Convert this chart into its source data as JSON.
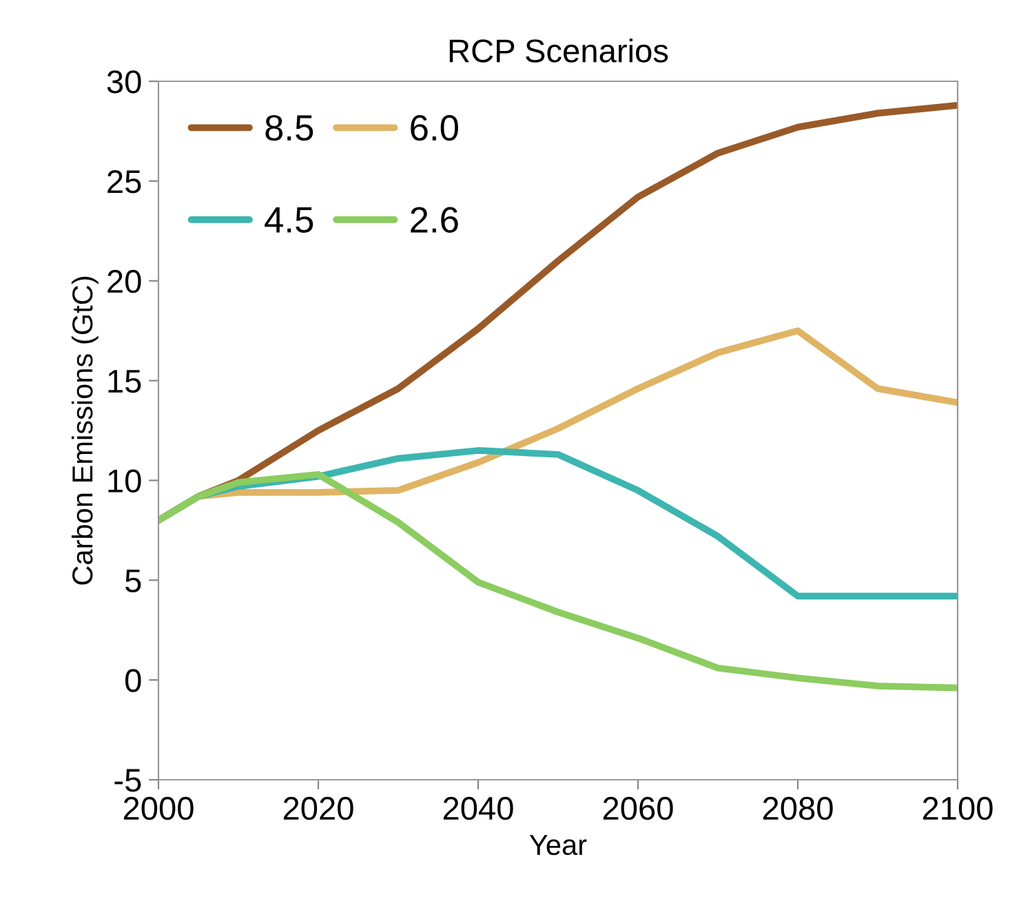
{
  "chart_data": {
    "type": "line",
    "title": "RCP Scenarios",
    "xlabel": "Year",
    "ylabel": "Carbon Emissions (GtC)",
    "x": [
      2000,
      2005,
      2010,
      2020,
      2030,
      2040,
      2050,
      2060,
      2070,
      2080,
      2090,
      2100
    ],
    "series": [
      {
        "name": "8.5",
        "color": "#9a5a28",
        "values": [
          8,
          9.2,
          10,
          12.5,
          14.6,
          17.6,
          21,
          24.2,
          26.4,
          27.7,
          28.4,
          28.8
        ]
      },
      {
        "name": "6.0",
        "color": "#e0b464",
        "values": [
          8,
          9.2,
          9.4,
          9.4,
          9.5,
          10.9,
          12.6,
          14.6,
          16.4,
          17.5,
          14.6,
          13.9
        ]
      },
      {
        "name": "4.5",
        "color": "#3db5b0",
        "values": [
          8,
          9.2,
          9.7,
          10.2,
          11.1,
          11.5,
          11.3,
          9.5,
          7.2,
          4.2,
          4.2,
          4.2
        ]
      },
      {
        "name": "2.6",
        "color": "#8ccc60",
        "values": [
          8,
          9.2,
          9.9,
          10.3,
          7.9,
          4.9,
          3.4,
          2.1,
          0.6,
          0.1,
          -0.3,
          -0.4
        ]
      }
    ],
    "xlim": [
      2000,
      2100
    ],
    "xticks": [
      2000,
      2020,
      2040,
      2060,
      2080,
      2100
    ],
    "ylim": [
      -5,
      30
    ],
    "yticks": [
      -5,
      0,
      5,
      10,
      15,
      20,
      25,
      30
    ],
    "grid": false,
    "legend": "top left",
    "marker": "none",
    "line_style": "solid"
  }
}
